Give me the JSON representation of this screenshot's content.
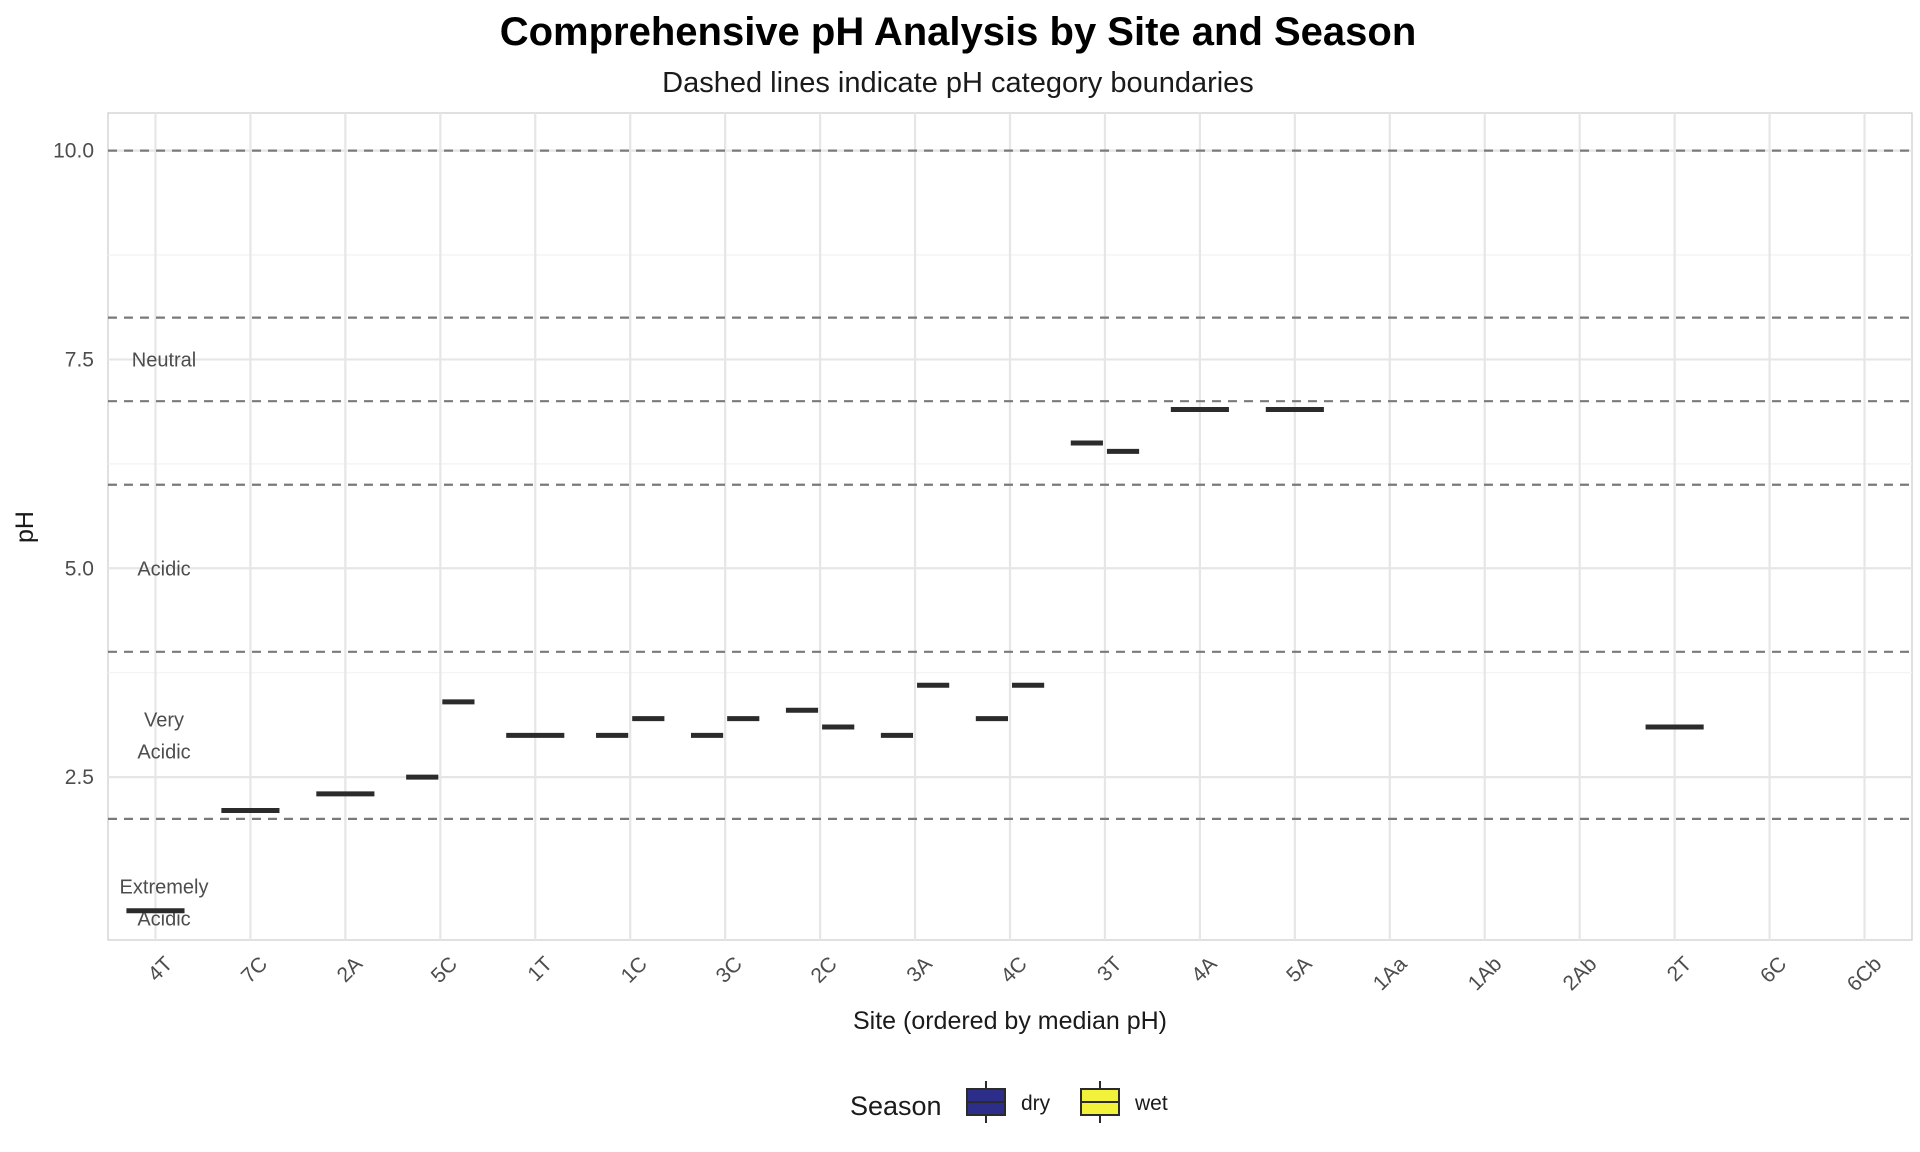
{
  "chart_data": {
    "type": "boxplot",
    "title": "Comprehensive pH Analysis by Site and Season",
    "subtitle": "Dashed lines indicate pH category boundaries",
    "xlabel": "Site (ordered by median pH)",
    "ylabel": "pH",
    "ylim": [
      0.55,
      10.45
    ],
    "yticks": [
      "2.5",
      "5.0",
      "7.5",
      "10.0"
    ],
    "categories": [
      "4T",
      "7C",
      "2A",
      "5C",
      "1T",
      "1C",
      "3C",
      "2C",
      "3A",
      "4C",
      "3T",
      "4A",
      "5A",
      "1Aa",
      "1Ab",
      "2Ab",
      "2T",
      "6C",
      "6Cb"
    ],
    "series": [
      {
        "name": "dry",
        "color": "#2d2d8a",
        "values": [
          0.9,
          2.1,
          2.3,
          2.5,
          3.0,
          3.0,
          3.0,
          3.3,
          3.0,
          3.2,
          6.5,
          6.9,
          6.9,
          null,
          null,
          null,
          3.1,
          null,
          null
        ]
      },
      {
        "name": "wet",
        "color": "#f2f23a",
        "values": [
          0.9,
          2.1,
          2.3,
          3.4,
          3.0,
          3.2,
          3.2,
          3.1,
          3.6,
          3.6,
          6.4,
          6.9,
          6.9,
          null,
          null,
          null,
          3.1,
          null,
          null
        ]
      }
    ],
    "combined_sites": [
      "4T",
      "7C",
      "2A",
      "1T",
      "4A",
      "5A",
      "2T"
    ],
    "boundaries": [
      2,
      4,
      6,
      7,
      8,
      10
    ],
    "category_labels": [
      {
        "lines": [
          "Extremely",
          "Acidic"
        ],
        "y": 1.0
      },
      {
        "lines": [
          "Very",
          "Acidic"
        ],
        "y": 3.0
      },
      {
        "lines": [
          "Acidic"
        ],
        "y": 5.0
      },
      {
        "lines": [
          "Neutral"
        ],
        "y": 7.5
      }
    ],
    "legend": {
      "title": "Season",
      "position": "bottom",
      "items": [
        "dry",
        "wet"
      ]
    },
    "grid": true
  }
}
